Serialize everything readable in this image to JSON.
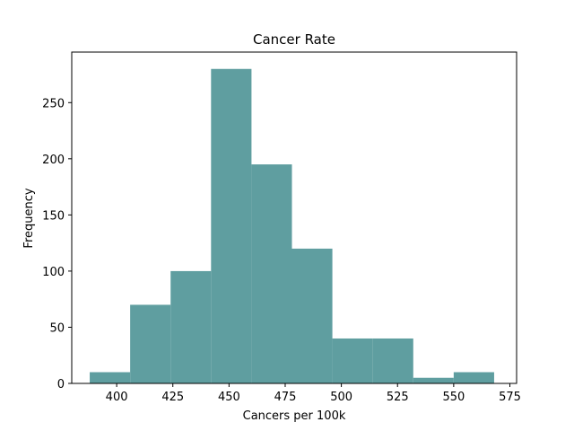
{
  "chart_data": {
    "type": "bar",
    "title": "Cancer Rate",
    "xlabel": "Cancers per 100k",
    "ylabel": "Frequency",
    "bar_color": "#5f9ea0",
    "xlim": [
      380,
      578
    ],
    "ylim": [
      0,
      295
    ],
    "x_ticks": [
      400,
      425,
      450,
      475,
      500,
      525,
      550,
      575
    ],
    "y_ticks": [
      0,
      50,
      100,
      150,
      200,
      250
    ],
    "bins": [
      {
        "x_start": 388,
        "x_end": 406,
        "value": 10
      },
      {
        "x_start": 406,
        "x_end": 424,
        "value": 70
      },
      {
        "x_start": 424,
        "x_end": 442,
        "value": 100
      },
      {
        "x_start": 442,
        "x_end": 460,
        "value": 280
      },
      {
        "x_start": 460,
        "x_end": 478,
        "value": 195
      },
      {
        "x_start": 478,
        "x_end": 496,
        "value": 120
      },
      {
        "x_start": 496,
        "x_end": 514,
        "value": 40
      },
      {
        "x_start": 514,
        "x_end": 532,
        "value": 40
      },
      {
        "x_start": 532,
        "x_end": 550,
        "value": 5
      },
      {
        "x_start": 550,
        "x_end": 568,
        "value": 10
      }
    ],
    "grid": false,
    "legend": "none"
  }
}
